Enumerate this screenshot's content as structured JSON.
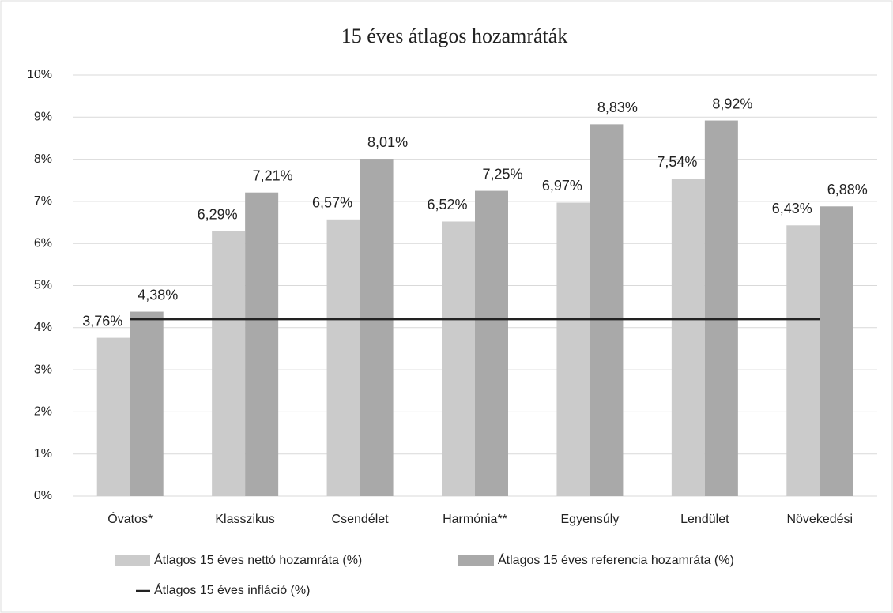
{
  "chart_data": {
    "type": "bar",
    "title": "15 éves átlagos hozamráták",
    "categories": [
      "Óvatos*",
      "Klasszikus",
      "Csendélet",
      "Harmónia**",
      "Egyensúly",
      "Lendület",
      "Növekedési"
    ],
    "series": [
      {
        "name": "Átlagos 15 éves nettó hozamráta (%)",
        "color": "#cbcbcb",
        "type": "bar",
        "values": [
          3.76,
          6.29,
          6.57,
          6.52,
          6.97,
          7.54,
          6.43
        ],
        "value_labels": [
          "3,76%",
          "6,29%",
          "6,57%",
          "6,52%",
          "6,97%",
          "7,54%",
          "6,43%"
        ]
      },
      {
        "name": "Átlagos 15 éves referencia hozamráta (%)",
        "color": "#a9a9a9",
        "type": "bar",
        "values": [
          4.38,
          7.21,
          8.01,
          7.25,
          8.83,
          8.92,
          6.88
        ],
        "value_labels": [
          "4,38%",
          "7,21%",
          "8,01%",
          "7,25%",
          "8,83%",
          "8,92%",
          "6,88%"
        ]
      },
      {
        "name": "Átlagos 15 éves infláció (%)",
        "color": "#222222",
        "type": "line",
        "values": [
          4.2,
          4.2,
          4.2,
          4.2,
          4.2,
          4.2,
          4.2
        ]
      }
    ],
    "ylim": [
      0,
      10
    ],
    "yticks": [
      {
        "value": 0,
        "label": "0%"
      },
      {
        "value": 1,
        "label": "1%"
      },
      {
        "value": 2,
        "label": "2%"
      },
      {
        "value": 3,
        "label": "3%"
      },
      {
        "value": 4,
        "label": "4%"
      },
      {
        "value": 5,
        "label": "5%"
      },
      {
        "value": 6,
        "label": "6%"
      },
      {
        "value": 7,
        "label": "7%"
      },
      {
        "value": 8,
        "label": "8%"
      },
      {
        "value": 9,
        "label": "9%"
      },
      {
        "value": 10,
        "label": "10%"
      }
    ],
    "grid": true
  }
}
